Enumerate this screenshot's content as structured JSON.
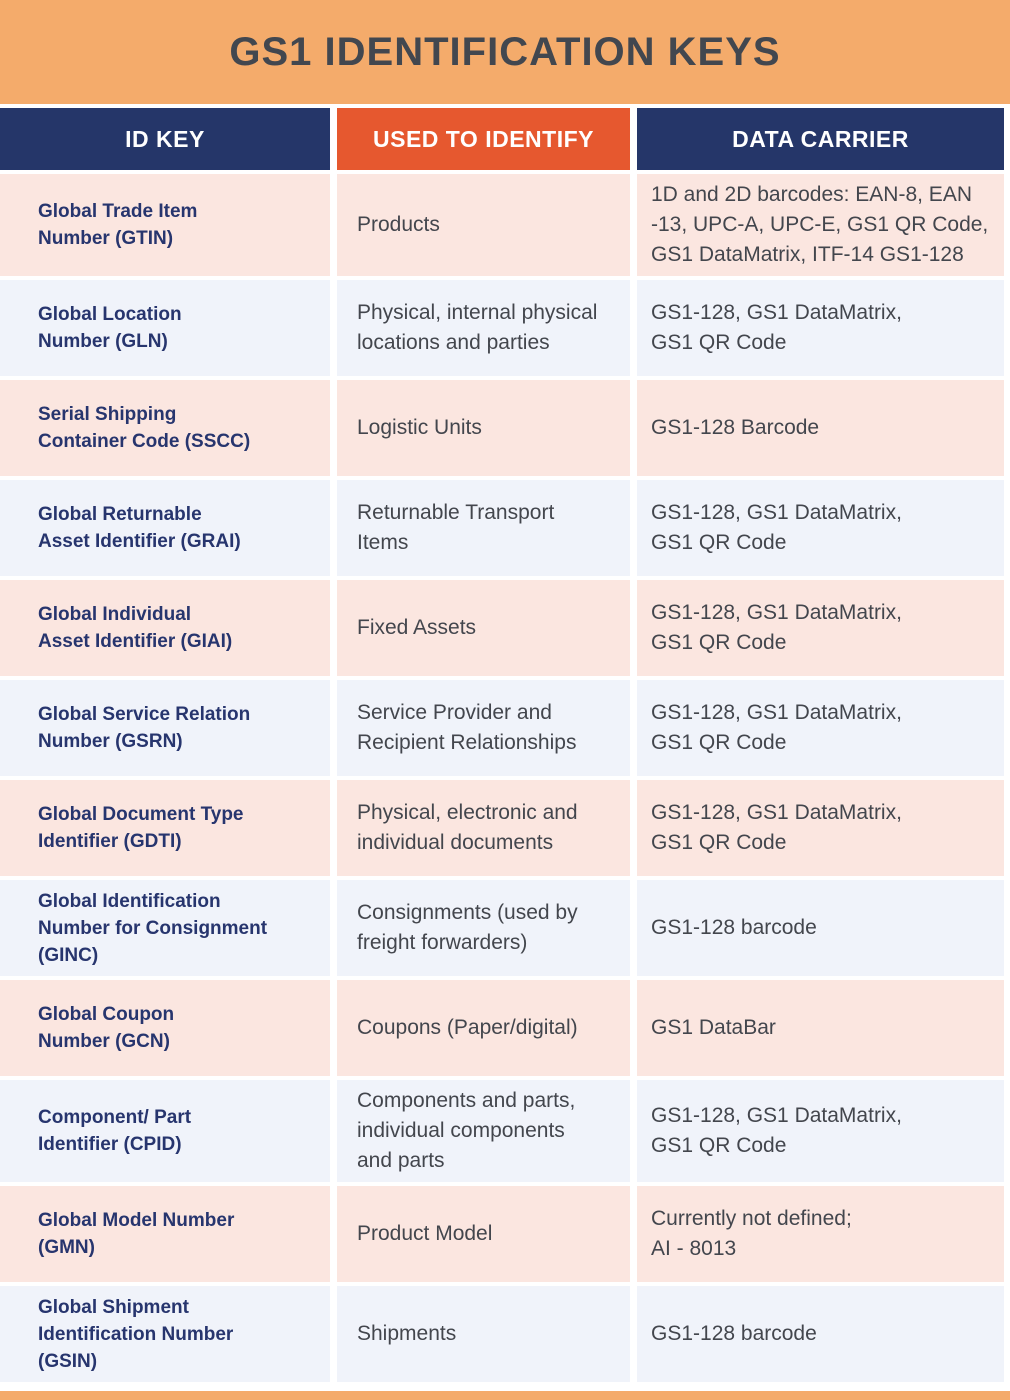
{
  "title": "GS1 IDENTIFICATION KEYS",
  "colors": {
    "banner_bg": "#F4AB6B",
    "header_navy": "#253669",
    "header_orange": "#E6582F",
    "row_pink": "#FBE6E0",
    "row_lavender": "#F0F3FA",
    "key_text": "#27356E",
    "body_text": "#43464D",
    "title_text": "#42474F",
    "footer_bar": "#F4AB6B"
  },
  "columns": {
    "id_key": "ID KEY",
    "used_to_identify": "USED TO IDENTIFY",
    "data_carrier": "DATA CARRIER"
  },
  "rows": [
    {
      "id_key": "Global Trade Item\nNumber (GTIN)",
      "used_to_identify": "Products",
      "data_carrier": "1D and 2D barcodes: EAN-8, EAN\n-13, UPC-A, UPC-E, GS1 QR Code,\nGS1 DataMatrix, ITF-14 GS1-128"
    },
    {
      "id_key": "Global Location\nNumber (GLN)",
      "used_to_identify": "Physical, internal physical\nlocations and parties",
      "data_carrier": "GS1-128, GS1 DataMatrix,\nGS1 QR Code"
    },
    {
      "id_key": "Serial Shipping\nContainer Code (SSCC)",
      "used_to_identify": "Logistic Units",
      "data_carrier": "GS1-128 Barcode"
    },
    {
      "id_key": "Global Returnable\nAsset Identifier (GRAI)",
      "used_to_identify": "Returnable Transport\nItems",
      "data_carrier": "GS1-128, GS1 DataMatrix,\nGS1 QR Code"
    },
    {
      "id_key": "Global Individual\nAsset Identifier (GIAI)",
      "used_to_identify": "Fixed Assets",
      "data_carrier": "GS1-128, GS1 DataMatrix,\nGS1 QR Code"
    },
    {
      "id_key": "Global Service Relation\nNumber (GSRN)",
      "used_to_identify": "Service Provider and\nRecipient Relationships",
      "data_carrier": "GS1-128, GS1 DataMatrix,\nGS1 QR Code"
    },
    {
      "id_key": "Global Document Type\nIdentifier (GDTI)",
      "used_to_identify": "Physical, electronic and\nindividual documents",
      "data_carrier": "GS1-128, GS1 DataMatrix,\nGS1 QR Code"
    },
    {
      "id_key": "Global Identification\nNumber for Consignment\n(GINC)",
      "used_to_identify": "Consignments (used by\nfreight forwarders)",
      "data_carrier": "GS1-128 barcode"
    },
    {
      "id_key": "Global Coupon\nNumber (GCN)",
      "used_to_identify": "Coupons (Paper/digital)",
      "data_carrier": "GS1 DataBar"
    },
    {
      "id_key": "Component/ Part\nIdentifier (CPID)",
      "used_to_identify": "Components and parts,\nindividual components\nand parts",
      "data_carrier": "GS1-128, GS1 DataMatrix,\nGS1 QR Code"
    },
    {
      "id_key": "Global Model Number\n(GMN)",
      "used_to_identify": "Product Model",
      "data_carrier": "Currently not defined;\nAI - 8013"
    },
    {
      "id_key": "Global Shipment\nIdentification Number\n(GSIN)",
      "used_to_identify": "Shipments",
      "data_carrier": "GS1-128 barcode"
    }
  ]
}
